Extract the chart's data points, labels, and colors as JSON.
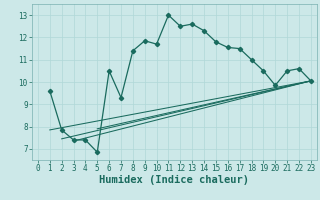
{
  "title": "",
  "xlabel": "Humidex (Indice chaleur)",
  "ylabel": "",
  "bg_color": "#cce8e8",
  "grid_color": "#b0d8d8",
  "line_color": "#1a6b5e",
  "xlim": [
    -0.5,
    23.5
  ],
  "ylim": [
    6.5,
    13.5
  ],
  "xticks": [
    0,
    1,
    2,
    3,
    4,
    5,
    6,
    7,
    8,
    9,
    10,
    11,
    12,
    13,
    14,
    15,
    16,
    17,
    18,
    19,
    20,
    21,
    22,
    23
  ],
  "yticks": [
    7,
    8,
    9,
    10,
    11,
    12,
    13
  ],
  "main_line": {
    "x": [
      1,
      2,
      3,
      4,
      5,
      6,
      7,
      8,
      9,
      10,
      11,
      12,
      13,
      14,
      15,
      16,
      17,
      18,
      19,
      20,
      21,
      22,
      23
    ],
    "y": [
      9.6,
      7.85,
      7.4,
      7.4,
      6.85,
      10.5,
      9.3,
      11.4,
      11.85,
      11.7,
      13.0,
      12.5,
      12.6,
      12.3,
      11.8,
      11.55,
      11.5,
      11.0,
      10.5,
      9.85,
      10.5,
      10.6,
      10.05
    ]
  },
  "linear_lines": [
    {
      "x": [
        1,
        23
      ],
      "y": [
        7.85,
        10.05
      ]
    },
    {
      "x": [
        2,
        23
      ],
      "y": [
        7.45,
        10.05
      ]
    },
    {
      "x": [
        3,
        23
      ],
      "y": [
        7.35,
        10.05
      ]
    },
    {
      "x": [
        5,
        23
      ],
      "y": [
        7.9,
        10.05
      ]
    }
  ],
  "tick_fontsize": 5.5,
  "xlabel_fontsize": 7.5
}
